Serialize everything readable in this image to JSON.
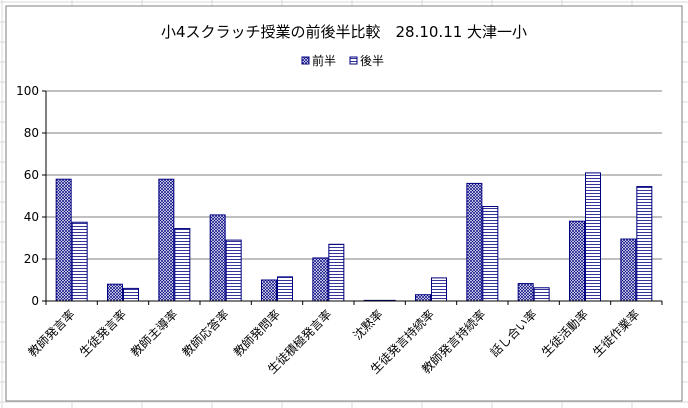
{
  "chart_data": {
    "type": "bar",
    "title": "小4スクラッチ授業の前後半比較　28.10.11 大津一小",
    "categories": [
      "教師発言率",
      "生徒発言率",
      "教師主導率",
      "教師応答率",
      "教師発問率",
      "生徒積極発言率",
      "沈黙率",
      "生徒発言持続率",
      "教師発言持続率",
      "話し合い率",
      "生徒活動率",
      "生徒作業率"
    ],
    "series": [
      {
        "name": "前半",
        "values": [
          58,
          8,
          58,
          41,
          10,
          20.5,
          0.3,
          3,
          56,
          8.3,
          38,
          29.5
        ]
      },
      {
        "name": "後半",
        "values": [
          37.5,
          6,
          34.5,
          29,
          11.5,
          27,
          0.3,
          11,
          45,
          6.3,
          61,
          54.5
        ]
      }
    ],
    "ylim": [
      0,
      100
    ],
    "yticks": [
      0,
      20,
      40,
      60,
      80,
      100
    ],
    "grid": true,
    "legend": "top-center",
    "colors": {
      "series_fill": "#ffffff",
      "series_line": "#000080",
      "grid": "#808080",
      "sheet_grid": "#d9d9d9"
    }
  }
}
